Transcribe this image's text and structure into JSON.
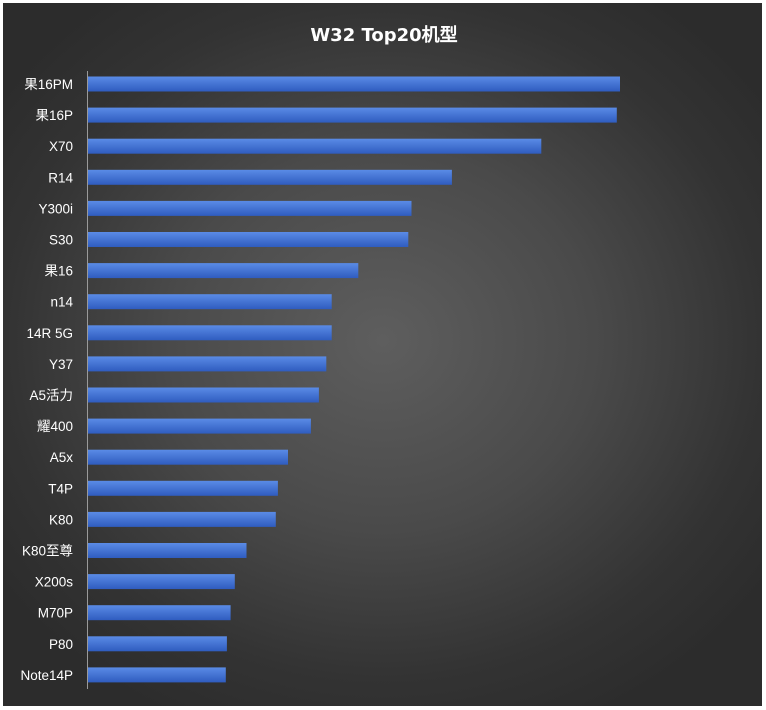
{
  "chart_data": {
    "type": "bar",
    "orientation": "horizontal",
    "title": "W32 Top20机型",
    "categories": [
      "果16PM",
      "果16P",
      "X70",
      "R14",
      "Y300i",
      "S30",
      "果16",
      "n14",
      "14R 5G",
      "Y37",
      "A5活力",
      "耀400",
      "A5x",
      "T4P",
      "K80",
      "K80至尊",
      "X200s",
      "M70P",
      "P80",
      "Note14P"
    ],
    "values": [
      100,
      99.4,
      85.2,
      68.4,
      60.8,
      60.2,
      50.8,
      45.8,
      45.8,
      44.8,
      43.4,
      41.9,
      37.6,
      35.7,
      35.3,
      29.8,
      27.6,
      26.8,
      26.1,
      25.9
    ],
    "xlim": [
      0,
      100
    ],
    "grid": false,
    "legend": "none",
    "bar_color": "#3a6bd0",
    "background_color": "#4a4a4a",
    "text_color": "#ffffff"
  }
}
